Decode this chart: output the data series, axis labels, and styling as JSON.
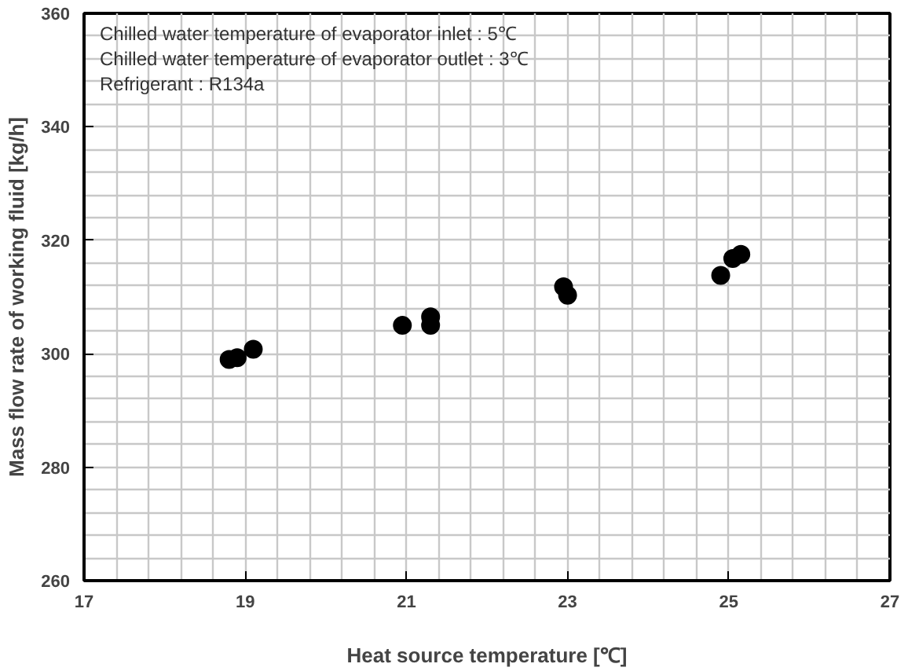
{
  "chart_data": {
    "type": "scatter",
    "xlabel": "Heat source temperature [℃]",
    "ylabel": "Mass flow rate of working fluid [kg/h]",
    "annotations": [
      "Chilled water temperature of evaporator inlet : 5℃",
      "Chilled water temperature of evaporator outlet : 3℃",
      "Refrigerant : R134a"
    ],
    "series": [
      {
        "color": "#000000",
        "x": [
          18.8,
          18.9,
          19.1,
          20.95,
          21.3,
          21.3,
          22.95,
          23.0,
          24.9,
          25.05,
          25.15
        ],
        "values": [
          299,
          299.3,
          300.8,
          305,
          306.5,
          305,
          311.8,
          310.3,
          313.8,
          316.8,
          317.5
        ]
      }
    ],
    "xlim": [
      17,
      27
    ],
    "ylim": [
      260,
      360
    ],
    "xticks": [
      17,
      19,
      21,
      23,
      25,
      27
    ],
    "yticks": [
      260,
      280,
      300,
      320,
      340,
      360
    ],
    "grid": true,
    "marker": "circle"
  }
}
